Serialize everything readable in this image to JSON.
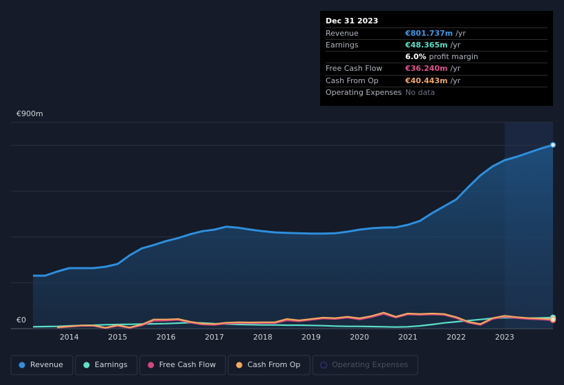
{
  "chart_data": {
    "type": "line",
    "x": [
      2013.25,
      2013.5,
      2013.75,
      2014,
      2014.25,
      2014.5,
      2014.75,
      2015,
      2015.25,
      2015.5,
      2015.75,
      2016,
      2016.25,
      2016.5,
      2016.75,
      2017,
      2017.25,
      2017.5,
      2017.75,
      2018,
      2018.25,
      2018.5,
      2018.75,
      2019,
      2019.25,
      2019.5,
      2019.75,
      2020,
      2020.25,
      2020.5,
      2020.75,
      2021,
      2021.25,
      2021.5,
      2021.75,
      2022,
      2022.25,
      2022.5,
      2022.75,
      2023,
      2023.25,
      2023.5,
      2023.75,
      2024
    ],
    "series": [
      {
        "name": "Revenue",
        "color": "#2e8fde",
        "area": true,
        "values": [
          231,
          231,
          249,
          264,
          264,
          264,
          270,
          282,
          320,
          350,
          365,
          382,
          395,
          412,
          425,
          432,
          445,
          440,
          432,
          425,
          420,
          418,
          416,
          415,
          415,
          416,
          423,
          432,
          438,
          441,
          442,
          453,
          470,
          504,
          534,
          564,
          618,
          669,
          708,
          735,
          750,
          768,
          786,
          801.737
        ]
      },
      {
        "name": "Earnings",
        "color": "#5ce0c8",
        "values": [
          8,
          9,
          10,
          12,
          14,
          15,
          17,
          18,
          19,
          20,
          21,
          22,
          24,
          26,
          25,
          22,
          20,
          18,
          17,
          16,
          16,
          15,
          15,
          14,
          13,
          11,
          10,
          10,
          9,
          8,
          7,
          8,
          12,
          18,
          25,
          30,
          35,
          40,
          45,
          48,
          47,
          46,
          47,
          48.365
        ]
      },
      {
        "name": "Free Cash Flow",
        "color": "#d6457e",
        "values": [
          null,
          null,
          4,
          8,
          12,
          12,
          2,
          12,
          3,
          14,
          34,
          35,
          38,
          26,
          18,
          16,
          22,
          24,
          23,
          24,
          24,
          36,
          32,
          38,
          44,
          42,
          48,
          40,
          50,
          64,
          48,
          62,
          60,
          62,
          60,
          46,
          26,
          16,
          42,
          52,
          46,
          42,
          40,
          36.24
        ]
      },
      {
        "name": "Cash From Op",
        "color": "#f0a860",
        "values": [
          null,
          null,
          6,
          10,
          14,
          14,
          4,
          15,
          5,
          18,
          40,
          40,
          42,
          30,
          22,
          20,
          26,
          28,
          27,
          28,
          28,
          42,
          36,
          42,
          48,
          46,
          52,
          45,
          55,
          70,
          52,
          66,
          64,
          66,
          64,
          50,
          30,
          20,
          46,
          56,
          50,
          46,
          44,
          40.443
        ]
      }
    ],
    "inactive_series": [
      {
        "name": "Operating Expenses",
        "color": "#2b2f6e"
      }
    ],
    "xlim": [
      2013.25,
      2024
    ],
    "xticks": [
      2014,
      2015,
      2016,
      2017,
      2018,
      2019,
      2020,
      2021,
      2022,
      2023
    ],
    "ylim": [
      0,
      900
    ],
    "yticks": [
      {
        "value": 0,
        "label": "€0"
      },
      {
        "value": 900,
        "label": "€900m"
      }
    ],
    "gridlines": [
      200,
      400,
      600,
      800
    ],
    "highlight_xlim": [
      2023,
      2024
    ],
    "legend": "bottom-left",
    "tooltip": {
      "date": "Dec 31 2023",
      "rows": [
        {
          "label": "Revenue",
          "value": "€801.737m",
          "unit": "/yr",
          "color": "#3d9be9"
        },
        {
          "label": "Earnings",
          "value": "€48.365m",
          "unit": "/yr",
          "color": "#5ce0c8"
        },
        {
          "value": "6.0%",
          "unit": "profit margin",
          "color": "#ffffff"
        },
        {
          "label": "Free Cash Flow",
          "value": "€36.240m",
          "unit": "/yr",
          "color": "#e0558d"
        },
        {
          "label": "Cash From Op",
          "value": "€40.443m",
          "unit": "/yr",
          "color": "#f0a860"
        },
        {
          "label": "Operating Expenses",
          "value": "No data",
          "color": "#6b7280"
        }
      ]
    }
  }
}
